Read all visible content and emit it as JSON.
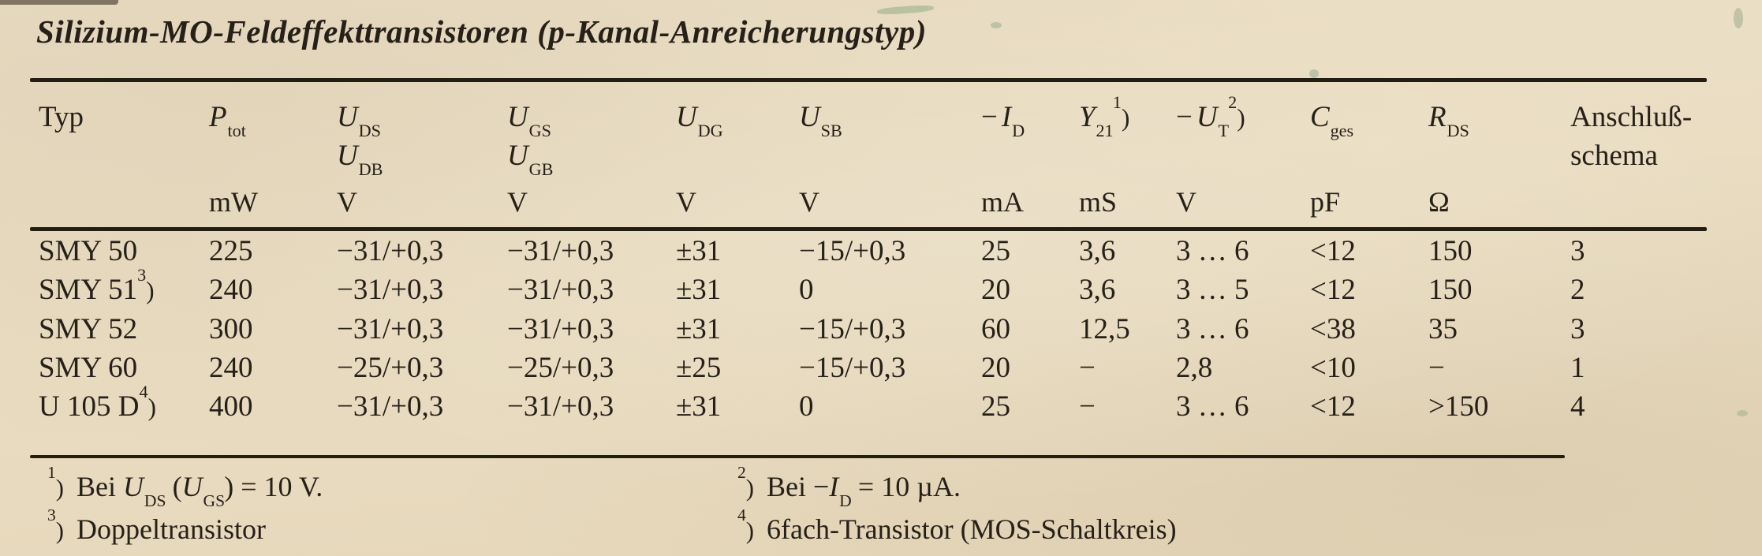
{
  "theme": {
    "paper": "#e9dcc1",
    "ink": "#262019",
    "rule": "#241d14",
    "artifact_green": "#6e9678"
  },
  "title": "Silizium-MO-Feldeffekttransistoren (p-Kanal-Anreicherungstyp)",
  "table": {
    "header": {
      "typ": {
        "line1": "Typ"
      },
      "ptot": {
        "sym": "P",
        "sub": "tot",
        "unit": "mW"
      },
      "uds": {
        "sym": "U",
        "sub": "DS",
        "sym2": "U",
        "sub2": "DB",
        "unit": "V"
      },
      "ugs": {
        "sym": "U",
        "sub": "GS",
        "sym2": "U",
        "sub2": "GB",
        "unit": "V"
      },
      "udg": {
        "sym": "U",
        "sub": "DG",
        "unit": "V"
      },
      "usb": {
        "sym": "U",
        "sub": "SB",
        "unit": "V"
      },
      "id": {
        "pre": "−",
        "sym": "I",
        "sub": "D",
        "unit": "mA"
      },
      "y21": {
        "sym": "Y",
        "sub": "21",
        "sup": "1",
        "paren": ")",
        "unit": "mS"
      },
      "ut": {
        "pre": "−",
        "sym": "U",
        "sub": "T",
        "sup": "2",
        "paren": ")",
        "unit": "V"
      },
      "cges": {
        "sym": "C",
        "sub": "ges",
        "unit": "pF"
      },
      "rds": {
        "sym": "R",
        "sub": "DS",
        "unit": "Ω"
      },
      "schema": {
        "line1": "Anschluß-",
        "line2": "schema"
      }
    },
    "rows": [
      {
        "typ": "SMY 50",
        "ptot": "225",
        "uds": "−31/+0,3",
        "ugs": "−31/+0,3",
        "udg": "±31",
        "usb": "−15/+0,3",
        "id": "25",
        "y21": "3,6",
        "ut": "3 … 6",
        "cges": "<12",
        "rds": "150",
        "schema": "3"
      },
      {
        "typ": "SMY 51",
        "typ_sup": "3",
        "typ_paren": ")",
        "ptot": "240",
        "uds": "−31/+0,3",
        "ugs": "−31/+0,3",
        "udg": "±31",
        "usb": "0",
        "id": "20",
        "y21": "3,6",
        "ut": "3 … 5",
        "cges": "<12",
        "rds": "150",
        "schema": "2"
      },
      {
        "typ": "SMY 52",
        "ptot": "300",
        "uds": "−31/+0,3",
        "ugs": "−31/+0,3",
        "udg": "±31",
        "usb": "−15/+0,3",
        "id": "60",
        "y21": "12,5",
        "ut": "3 … 6",
        "cges": "<38",
        "rds": "35",
        "schema": "3"
      },
      {
        "typ": "SMY 60",
        "ptot": "240",
        "uds": "−25/+0,3",
        "ugs": "−25/+0,3",
        "udg": "±25",
        "usb": "−15/+0,3",
        "id": "20",
        "y21": "−",
        "ut": "2,8",
        "cges": "<10",
        "rds": "−",
        "schema": "1"
      },
      {
        "typ": "U 105 D",
        "typ_sup": "4",
        "typ_paren": ")",
        "ptot": "400",
        "uds": "−31/+0,3",
        "ugs": "−31/+0,3",
        "udg": "±31",
        "usb": "0",
        "id": "25",
        "y21": "−",
        "ut": "3 … 6",
        "cges": "<12",
        "rds": ">150",
        "schema": "4"
      }
    ]
  },
  "footnotes": {
    "f1": {
      "sup": "1",
      "paren": ")",
      "t1": "Bei ",
      "sym1": "U",
      "sub1": "DS",
      "t2": " (",
      "sym2": "U",
      "sub2": "GS",
      "t3": ") = 10 V."
    },
    "f2": {
      "sup": "2",
      "paren": ")",
      "t1": "Bei −",
      "sym1": "I",
      "sub1": "D",
      "t2": " = 10 µA."
    },
    "f3": {
      "sup": "3",
      "paren": ")",
      "t1": "Doppeltransistor"
    },
    "f4": {
      "sup": "4",
      "paren": ")",
      "t1": "6fach-Transistor (MOS-Schaltkreis)"
    }
  }
}
